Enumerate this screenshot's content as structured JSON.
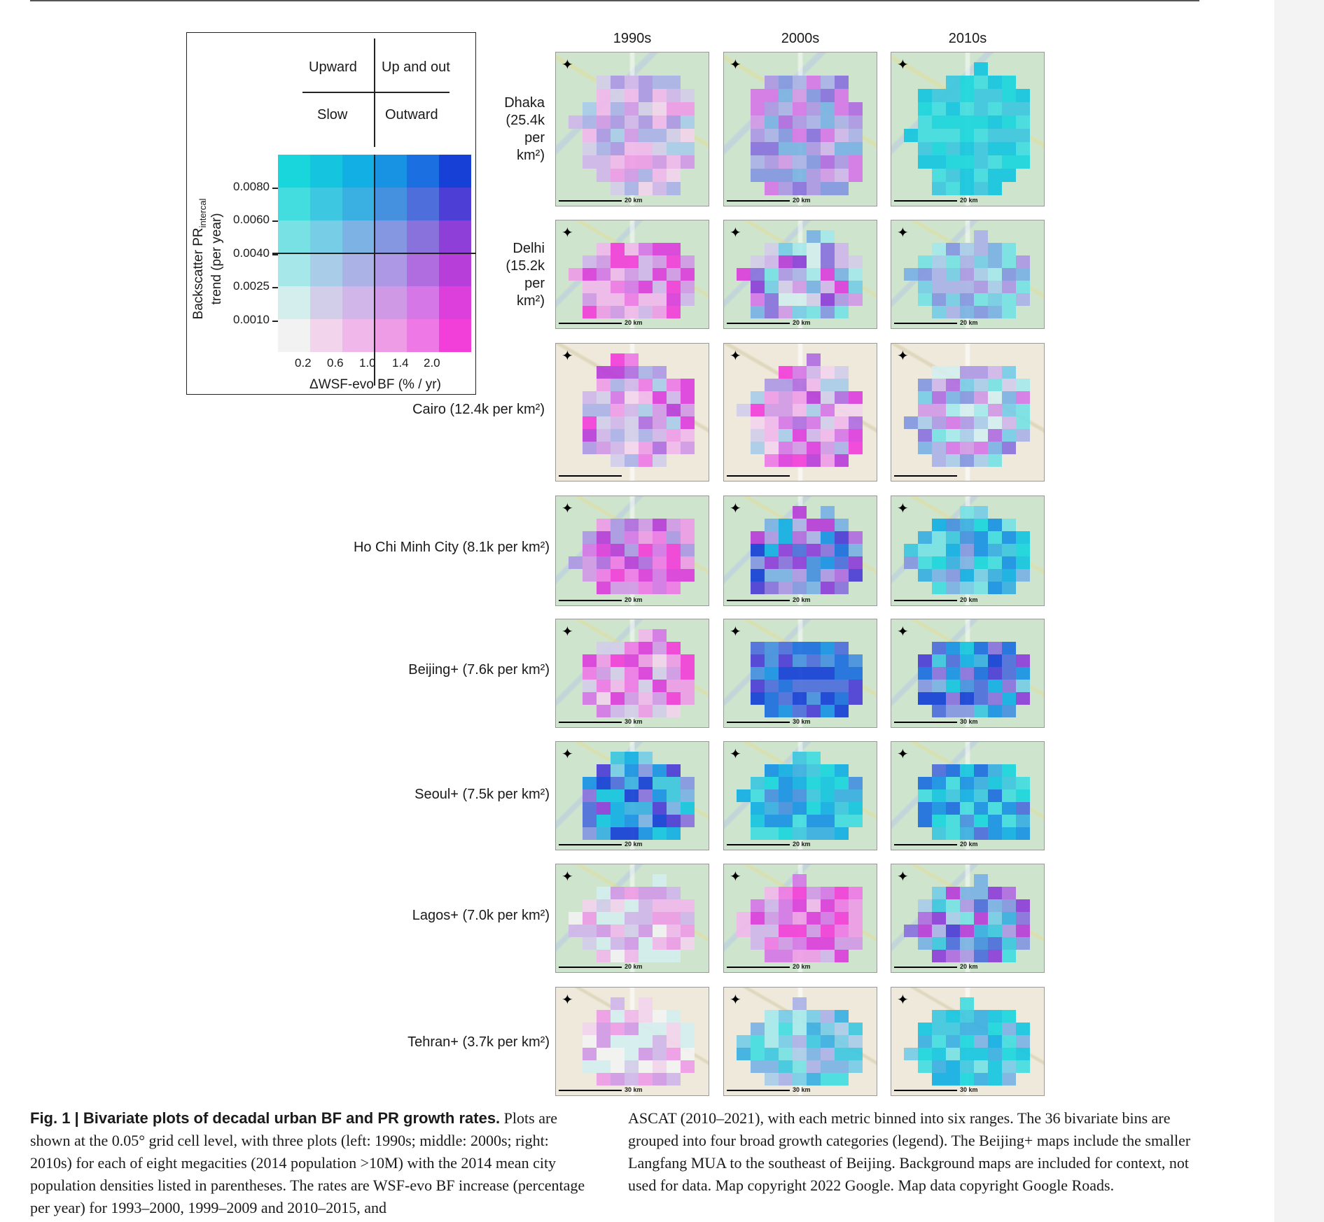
{
  "figure": {
    "column_headers": [
      "1990s",
      "2000s",
      "2010s"
    ],
    "legend": {
      "categories": {
        "top_left": "Upward",
        "top_right": "Up and out",
        "bottom_left": "Slow",
        "bottom_right": "Outward"
      },
      "y_label_main": "Backscatter PR",
      "y_label_sub": "intercal",
      "y_label_line2": "trend (per year)",
      "y_ticks": [
        "0.0080",
        "0.0060",
        "0.0040",
        "0.0025",
        "0.0010"
      ],
      "x_ticks": [
        "0.2",
        "0.6",
        "1.0",
        "1.4",
        "2.0"
      ],
      "x_label": "ΔWSF-evo BF (% / yr)",
      "colors": [
        [
          "#19d6dd",
          "#15c5e0",
          "#12afe4",
          "#1893e4",
          "#1c6fe0",
          "#1640d6"
        ],
        [
          "#43dcdf",
          "#3dc7e0",
          "#3aafe2",
          "#4590df",
          "#4d6edb",
          "#4d3ed6"
        ],
        [
          "#77e1e4",
          "#77cce6",
          "#7cb2e4",
          "#8497e0",
          "#8a72dc",
          "#8d3fd8"
        ],
        [
          "#a6e8ea",
          "#a9cce9",
          "#aab2e6",
          "#ac98e4",
          "#b06de0",
          "#b73ed8"
        ],
        [
          "#d4eeee",
          "#d2cde9",
          "#d0b6e9",
          "#d099e6",
          "#d577e6",
          "#dc3fdc"
        ],
        [
          "#f2f2f2",
          "#f2d4ec",
          "#f0b8ea",
          "#ee9ce6",
          "#ee79e6",
          "#f23fd9"
        ]
      ]
    },
    "cities": [
      {
        "name": "Dhaka",
        "label_lines": [
          "Dhaka",
          "(25.4k",
          "per",
          "km²)"
        ],
        "scale": "20 km"
      },
      {
        "name": "Delhi",
        "label_lines": [
          "Delhi",
          "(15.2k",
          "per",
          "km²)"
        ],
        "scale": "20 km"
      },
      {
        "name": "Cairo",
        "label_lines": [
          "Cairo (12.4k per km²)"
        ],
        "scale": ""
      },
      {
        "name": "Ho Chi Minh City",
        "label_lines": [
          "Ho Chi Minh City (8.1k per km²)"
        ],
        "scale": "20 km"
      },
      {
        "name": "Beijing+",
        "label_lines": [
          "Beijing+ (7.6k per km²)"
        ],
        "scale": "30 km"
      },
      {
        "name": "Seoul+",
        "label_lines": [
          "Seoul+ (7.5k per km²)"
        ],
        "scale": "20 km"
      },
      {
        "name": "Lagos+",
        "label_lines": [
          "Lagos+ (7.0k per km²)"
        ],
        "scale": "20 km"
      },
      {
        "name": "Tehran+",
        "label_lines": [
          "Tehran+ (3.7k per km²)"
        ],
        "scale": "30 km"
      }
    ],
    "caption": {
      "title": "Fig. 1 | Bivariate plots of decadal urban BF and PR growth rates.",
      "left_text": " Plots are shown at the 0.05° grid cell level, with three plots (left: 1990s; middle: 2000s; right: 2010s) for each of eight megacities (2014 population >10M) with the 2014 mean city population densities listed in parentheses. The rates are WSF-evo BF increase (percentage per year) for 1993–2000, 1999–2009 and 2010–2015, and",
      "right_text": "ASCAT (2010–2021), with each metric binned into six ranges. The 36 bivariate bins are grouped into four broad growth categories (legend). The Beijing+ maps include the smaller Langfang MUA to the southeast of Beijing. Background maps are included for context, not used for data. Map copyright 2022 Google. Map data copyright Google Roads."
    }
  }
}
